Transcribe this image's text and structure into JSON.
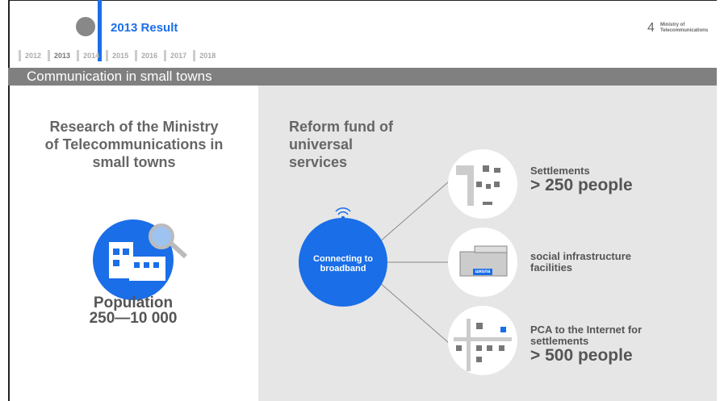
{
  "header": {
    "title": "2013 Result",
    "years": [
      "2012",
      "2013",
      "2014",
      "2015",
      "2016",
      "2017",
      "2018"
    ],
    "page_number": "4",
    "ministry": "Ministry of Telecommunications"
  },
  "banner": "Communication in small towns",
  "left": {
    "heading": "Research of the Ministry of Telecommunications in small towns",
    "population_label": "Population",
    "population_range": "250—10 000"
  },
  "right": {
    "heading": "Reform fund of universal services",
    "hub": "Connecting to broadband",
    "school_sign": "школа",
    "items": [
      {
        "title": "Settlements",
        "detail": "> 250 people"
      },
      {
        "title": "social infrastructure facilities"
      },
      {
        "title": "PCA to the Internet for settlements",
        "detail": "> 500 people"
      }
    ]
  }
}
